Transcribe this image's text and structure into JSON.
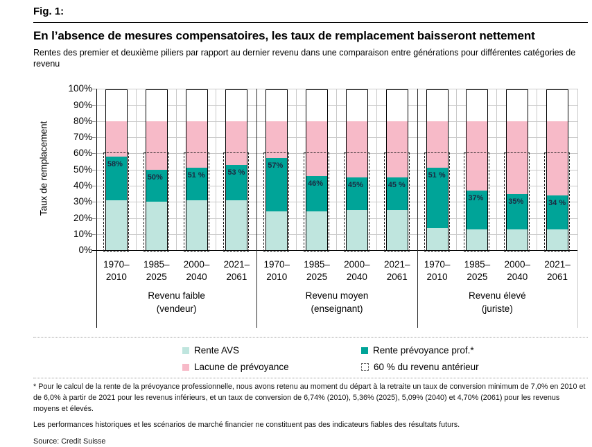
{
  "figure": {
    "fig_label": "Fig. 1:",
    "title": "En l’absence de mesures compensatoires, les taux de remplacement baisseront nettement",
    "subtitle": "Rentes des premier et deuxième piliers par rapport au dernier revenu dans une comparaison entre générations pour différentes catégories de revenu"
  },
  "chart_data": {
    "type": "bar",
    "stacked": true,
    "ylabel": "Taux de remplacement",
    "ylim": [
      0,
      100
    ],
    "ytick_step": 10,
    "ytick_suffix": "%",
    "grid": true,
    "reference_line": {
      "value": 60,
      "style": "dashed",
      "label": "60 % du revenu antérieur"
    },
    "series_names": [
      "Rente AVS",
      "Rente prévoyance prof.*",
      "Lacune de prévoyance"
    ],
    "gap_top_percent": 80,
    "groups": [
      {
        "label": "Revenu faible",
        "sublabel": "(vendeur)",
        "bars": [
          {
            "period": [
              "1970–",
              "2010"
            ],
            "avs": 31,
            "total": 58,
            "label": "58%"
          },
          {
            "period": [
              "1985–",
              "2025"
            ],
            "avs": 30,
            "total": 50,
            "label": "50%"
          },
          {
            "period": [
              "2000–",
              "2040"
            ],
            "avs": 31,
            "total": 51,
            "label": "51 %"
          },
          {
            "period": [
              "2021–",
              "2061"
            ],
            "avs": 31,
            "total": 53,
            "label": "53 %"
          }
        ]
      },
      {
        "label": "Revenu moyen",
        "sublabel": "(enseignant)",
        "bars": [
          {
            "period": [
              "1970–",
              "2010"
            ],
            "avs": 24,
            "total": 57,
            "label": "57%"
          },
          {
            "period": [
              "1985–",
              "2025"
            ],
            "avs": 24,
            "total": 46,
            "label": "46%"
          },
          {
            "period": [
              "2000–",
              "2040"
            ],
            "avs": 25,
            "total": 45,
            "label": "45%"
          },
          {
            "period": [
              "2021–",
              "2061"
            ],
            "avs": 25,
            "total": 45,
            "label": "45 %"
          }
        ]
      },
      {
        "label": "Revenu élevé",
        "sublabel": "(juriste)",
        "bars": [
          {
            "period": [
              "1970–",
              "2010"
            ],
            "avs": 14,
            "total": 51,
            "label": "51 %"
          },
          {
            "period": [
              "1985–",
              "2025"
            ],
            "avs": 13,
            "total": 37,
            "label": "37%"
          },
          {
            "period": [
              "2000–",
              "2040"
            ],
            "avs": 13,
            "total": 35,
            "label": "35%"
          },
          {
            "period": [
              "2021–",
              "2061"
            ],
            "avs": 13,
            "total": 34,
            "label": "34 %"
          }
        ]
      }
    ],
    "colors": {
      "avs": "#bfe5de",
      "prof": "#00a498",
      "gap": "#f7bac8",
      "grid": "#c9c9c9",
      "axis": "#000000",
      "bar_label": "#1b2a41"
    }
  },
  "legend": {
    "items": [
      {
        "label": "Rente AVS",
        "swatch": "avs"
      },
      {
        "label": "Rente prévoyance prof.*",
        "swatch": "prof"
      },
      {
        "label": "Lacune de prévoyance",
        "swatch": "gap"
      },
      {
        "label": "60 % du revenu antérieur",
        "swatch": "dashed"
      }
    ]
  },
  "notes": {
    "conversion": "* Pour le calcul de la rente de la prévoyance professionnelle, nous avons retenu au moment du départ à la retraite un taux de conversion minimum de 7,0% en 2010 et de 6,0% à partir de 2021 pour les revenus inférieurs, et un taux de conversion de 6,74% (2010), 5,36% (2025), 5,09% (2040) et 4,70% (2061) pour les revenus moyens et élevés.",
    "disclaimer": "Les performances historiques et les scénarios de marché financier ne constituent pas des indicateurs fiables des résultats futurs.",
    "source": "Source: Credit Suisse"
  }
}
